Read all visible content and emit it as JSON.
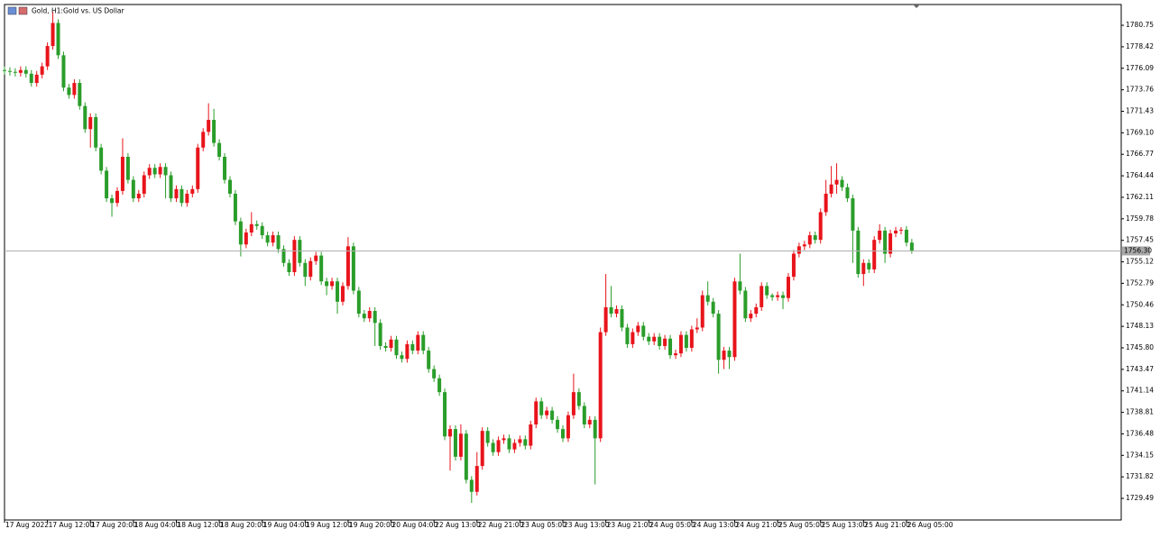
{
  "chart_data": {
    "type": "candlestick",
    "symbol": "Gold, H1:",
    "title": "Gold vs. US Dollar",
    "up_color": "#e8141b",
    "down_color": "#2a9d2a",
    "xlim": [
      0,
      208
    ],
    "ylim": [
      1727.15,
      1783.0
    ],
    "xticks": [
      {
        "value": 0,
        "label": "17 Aug 2022"
      },
      {
        "value": 8,
        "label": "17 Aug 12:00"
      },
      {
        "value": 16,
        "label": "17 Aug 20:00"
      },
      {
        "value": 24,
        "label": "18 Aug 04:00"
      },
      {
        "value": 32,
        "label": "18 Aug 12:00"
      },
      {
        "value": 40,
        "label": "18 Aug 20:00"
      },
      {
        "value": 48,
        "label": "19 Aug 04:00"
      },
      {
        "value": 56,
        "label": "19 Aug 12:00"
      },
      {
        "value": 64,
        "label": "19 Aug 20:00"
      },
      {
        "value": 72,
        "label": "20 Aug 04:00"
      },
      {
        "value": 80,
        "label": "22 Aug 13:00"
      },
      {
        "value": 88,
        "label": "22 Aug 21:00"
      },
      {
        "value": 96,
        "label": "23 Aug 05:00"
      },
      {
        "value": 104,
        "label": "23 Aug 13:00"
      },
      {
        "value": 112,
        "label": "23 Aug 21:00"
      },
      {
        "value": 120,
        "label": "24 Aug 05:00"
      },
      {
        "value": 128,
        "label": "24 Aug 13:00"
      },
      {
        "value": 136,
        "label": "24 Aug 21:00"
      },
      {
        "value": 144,
        "label": "25 Aug 05:00"
      },
      {
        "value": 152,
        "label": "25 Aug 13:00"
      },
      {
        "value": 160,
        "label": "25 Aug 21:00"
      },
      {
        "value": 168,
        "label": "26 Aug 05:00"
      }
    ],
    "yticks": [
      1780.75,
      1778.42,
      1776.09,
      1773.76,
      1771.43,
      {
        "value": 1769.1,
        "label": "1769.10"
      },
      1766.77,
      1764.44,
      1762.11,
      1759.78,
      1757.45,
      1755.12,
      1752.79,
      1750.46,
      1748.13,
      {
        "value": 1745.8,
        "label": "1745.80"
      },
      1743.47,
      1741.14,
      1738.81,
      1736.48,
      1734.15,
      1731.82,
      1729.49
    ],
    "last_price": {
      "value": 1756.3,
      "label": "1756.30"
    },
    "open": [
      1775.9,
      1775.8,
      1775.7,
      1775.6,
      1775.9,
      1775.5,
      1774.5,
      1775.4,
      1776.3,
      1778.5,
      1781.0,
      1777.5,
      1774.0,
      1773.2,
      1774.5,
      1772.0,
      1769.5,
      1770.8,
      1767.5,
      1765.0,
      1762.0,
      1761.5,
      1762.8,
      1766.5,
      1764.0,
      1762.0,
      1762.5,
      1764.5,
      1765.3,
      1764.6,
      1765.4,
      1764.5,
      1762.0,
      1763.0,
      1761.5,
      1762.5,
      1763.0,
      1767.5,
      1769.2,
      1770.5,
      1768.0,
      1766.5,
      1764.0,
      1762.5,
      1759.5,
      1757.0,
      1758.3,
      1759.2,
      1759.0,
      1758.0,
      1757.2,
      1758.0,
      1756.5,
      1755.0,
      1754.0,
      1757.5,
      1755.0,
      1753.5,
      1755.2,
      1755.8,
      1753.0,
      1752.5,
      1753.0,
      1750.8,
      1752.5,
      1756.8,
      1752.0,
      1749.5,
      1749.0,
      1749.8,
      1748.5,
      1746.0,
      1745.8,
      1746.7,
      1745.0,
      1744.6,
      1746.2,
      1745.5,
      1747.2,
      1745.5,
      1743.5,
      1742.5,
      1741.0,
      1736.2,
      1737.0,
      1734.0,
      1736.5,
      1731.5,
      1730.2,
      1733.0,
      1736.8,
      1735.5,
      1734.5,
      1735.8,
      1736.0,
      1734.8,
      1735.5,
      1735.9,
      1735.2,
      1737.5,
      1740.0,
      1738.5,
      1739.0,
      1738.0,
      1737.0,
      1736.0,
      1738.5,
      1741.0,
      1739.5,
      1737.5,
      1738.0,
      1736.0,
      1747.5,
      1750.2,
      1749.5,
      1750.0,
      1748.0,
      1746.2,
      1747.5,
      1748.2,
      1747.0,
      1746.5,
      1747.0,
      1746.0,
      1746.8,
      1745.0,
      1745.2,
      1747.2,
      1745.8,
      1747.8,
      1748.0,
      1751.5,
      1750.8,
      1749.5,
      1744.5,
      1745.5,
      1744.8,
      1753.0,
      1752.0,
      1749.0,
      1749.5,
      1750.2,
      1752.5,
      1751.5,
      1751.3,
      1751.5,
      1751.2,
      1753.5,
      1756.0,
      1756.8,
      1757.0,
      1758.0,
      1757.5,
      1760.5,
      1762.5,
      1763.5,
      1764.0,
      1763.2,
      1762.0,
      1758.5,
      1753.8,
      1755.0,
      1754.3,
      1757.5,
      1758.5,
      1756.0,
      1758.2,
      1758.5,
      1758.6,
      1757.2
    ],
    "high": [
      1776.3,
      1776.2,
      1776.1,
      1776.3,
      1776.3,
      1775.9,
      1775.8,
      1776.7,
      1778.9,
      1782.2,
      1781.4,
      1777.9,
      1774.4,
      1774.9,
      1774.9,
      1772.4,
      1771.2,
      1771.2,
      1767.9,
      1765.4,
      1762.4,
      1763.2,
      1768.5,
      1766.9,
      1764.4,
      1762.9,
      1764.9,
      1765.7,
      1765.7,
      1765.8,
      1765.8,
      1764.9,
      1763.4,
      1763.4,
      1762.9,
      1763.4,
      1767.9,
      1769.6,
      1772.3,
      1771.7,
      1768.4,
      1766.9,
      1764.4,
      1762.9,
      1759.9,
      1758.7,
      1760.5,
      1759.6,
      1759.4,
      1758.4,
      1758.4,
      1758.4,
      1756.9,
      1755.4,
      1757.9,
      1757.9,
      1755.4,
      1755.6,
      1756.2,
      1756.2,
      1753.4,
      1753.4,
      1753.4,
      1752.9,
      1757.8,
      1757.2,
      1752.4,
      1749.9,
      1750.2,
      1750.2,
      1748.9,
      1746.4,
      1747.1,
      1747.1,
      1745.4,
      1746.6,
      1746.6,
      1747.6,
      1747.6,
      1745.9,
      1743.9,
      1742.9,
      1741.4,
      1737.4,
      1737.4,
      1737.5,
      1736.9,
      1731.9,
      1734.5,
      1737.2,
      1737.2,
      1735.9,
      1736.2,
      1736.4,
      1736.4,
      1735.9,
      1736.3,
      1736.3,
      1737.9,
      1740.4,
      1740.4,
      1739.4,
      1739.4,
      1738.4,
      1737.4,
      1738.9,
      1743.0,
      1741.4,
      1739.9,
      1738.4,
      1738.4,
      1748.0,
      1753.8,
      1752.5,
      1750.4,
      1750.4,
      1748.4,
      1747.9,
      1748.6,
      1748.6,
      1747.4,
      1747.4,
      1747.4,
      1747.2,
      1747.2,
      1745.6,
      1747.6,
      1747.6,
      1748.2,
      1749.0,
      1752.0,
      1753.0,
      1751.2,
      1749.9,
      1745.9,
      1745.9,
      1753.4,
      1756.0,
      1752.4,
      1749.9,
      1750.6,
      1752.9,
      1752.9,
      1751.7,
      1751.9,
      1751.9,
      1753.9,
      1756.4,
      1757.2,
      1757.4,
      1758.4,
      1758.4,
      1760.9,
      1764.0,
      1765.5,
      1765.8,
      1764.4,
      1763.6,
      1762.4,
      1758.9,
      1755.4,
      1755.4,
      1757.9,
      1759.2,
      1758.9,
      1758.6,
      1758.9,
      1758.9,
      1759.0,
      1757.6
    ],
    "low": [
      1775.4,
      1775.3,
      1775.2,
      1775.2,
      1775.1,
      1774.1,
      1774.1,
      1775.0,
      1775.9,
      1778.1,
      1777.1,
      1773.6,
      1772.8,
      1772.8,
      1771.6,
      1769.1,
      1767.5,
      1767.1,
      1764.6,
      1761.6,
      1760.0,
      1761.1,
      1762.4,
      1763.6,
      1761.6,
      1761.6,
      1762.1,
      1764.1,
      1764.2,
      1764.2,
      1762.0,
      1761.6,
      1761.6,
      1761.1,
      1761.1,
      1762.1,
      1762.6,
      1767.1,
      1768.8,
      1767.6,
      1766.1,
      1763.6,
      1762.1,
      1759.1,
      1755.7,
      1756.6,
      1757.9,
      1758.6,
      1757.6,
      1756.8,
      1756.8,
      1756.1,
      1754.6,
      1753.6,
      1753.6,
      1754.6,
      1752.5,
      1753.1,
      1754.8,
      1752.6,
      1751.5,
      1752.1,
      1749.5,
      1750.4,
      1752.1,
      1751.6,
      1749.1,
      1748.6,
      1748.6,
      1746.0,
      1745.6,
      1745.4,
      1745.4,
      1744.6,
      1744.2,
      1744.2,
      1745.1,
      1745.1,
      1745.1,
      1743.1,
      1742.1,
      1740.6,
      1735.8,
      1732.5,
      1733.6,
      1733.6,
      1731.1,
      1729.0,
      1729.8,
      1732.6,
      1735.1,
      1734.1,
      1734.1,
      1735.4,
      1734.4,
      1734.4,
      1735.1,
      1734.8,
      1734.8,
      1737.1,
      1738.1,
      1738.1,
      1737.6,
      1736.6,
      1735.6,
      1735.6,
      1738.1,
      1739.1,
      1737.1,
      1737.1,
      1731.0,
      1735.6,
      1747.1,
      1749.1,
      1749.1,
      1747.6,
      1745.8,
      1745.8,
      1747.1,
      1746.6,
      1746.1,
      1746.1,
      1745.6,
      1745.6,
      1744.6,
      1744.6,
      1744.8,
      1745.4,
      1745.4,
      1747.4,
      1747.6,
      1750.4,
      1749.1,
      1743.0,
      1743.5,
      1743.5,
      1744.4,
      1751.6,
      1748.6,
      1748.6,
      1749.1,
      1749.8,
      1751.1,
      1750.9,
      1750.9,
      1750.0,
      1750.8,
      1753.1,
      1755.6,
      1756.4,
      1756.6,
      1757.1,
      1757.1,
      1760.1,
      1762.1,
      1762.5,
      1762.8,
      1761.6,
      1755.0,
      1753.4,
      1752.5,
      1753.9,
      1753.9,
      1757.1,
      1755.0,
      1755.6,
      1757.8,
      1758.1,
      1756.8,
      1756.0
    ],
    "close": [
      1775.8,
      1775.7,
      1775.6,
      1775.9,
      1775.5,
      1774.5,
      1775.4,
      1776.3,
      1778.5,
      1781.0,
      1777.5,
      1774.0,
      1773.2,
      1774.5,
      1772.0,
      1769.5,
      1770.8,
      1767.5,
      1765.0,
      1762.0,
      1761.5,
      1762.8,
      1766.5,
      1764.0,
      1762.0,
      1762.5,
      1764.5,
      1765.3,
      1764.6,
      1765.4,
      1764.5,
      1762.0,
      1763.0,
      1761.5,
      1762.5,
      1763.0,
      1767.5,
      1769.2,
      1770.5,
      1768.0,
      1766.5,
      1764.0,
      1762.5,
      1759.5,
      1757.0,
      1758.3,
      1759.2,
      1759.0,
      1758.0,
      1757.2,
      1758.0,
      1756.5,
      1755.0,
      1754.0,
      1757.5,
      1755.0,
      1753.5,
      1755.2,
      1755.8,
      1753.0,
      1752.5,
      1753.0,
      1750.8,
      1752.5,
      1756.8,
      1752.0,
      1749.5,
      1749.0,
      1749.8,
      1748.5,
      1746.0,
      1745.8,
      1746.7,
      1745.0,
      1744.6,
      1746.2,
      1745.5,
      1747.2,
      1745.5,
      1743.5,
      1742.5,
      1741.0,
      1736.2,
      1737.0,
      1734.0,
      1736.5,
      1731.5,
      1730.2,
      1733.0,
      1736.8,
      1735.5,
      1734.5,
      1735.8,
      1736.0,
      1734.8,
      1735.5,
      1735.9,
      1735.2,
      1737.5,
      1740.0,
      1738.5,
      1739.0,
      1738.0,
      1737.0,
      1736.0,
      1738.5,
      1741.0,
      1739.5,
      1737.5,
      1738.0,
      1736.0,
      1747.5,
      1750.2,
      1749.5,
      1750.0,
      1748.0,
      1746.2,
      1747.5,
      1748.2,
      1747.0,
      1746.5,
      1747.0,
      1746.0,
      1746.8,
      1745.0,
      1745.2,
      1747.2,
      1745.8,
      1747.8,
      1748.0,
      1751.5,
      1750.8,
      1749.5,
      1744.5,
      1745.5,
      1744.8,
      1753.0,
      1752.0,
      1749.0,
      1749.5,
      1750.2,
      1752.5,
      1751.5,
      1751.3,
      1751.5,
      1751.2,
      1753.5,
      1756.0,
      1756.8,
      1757.0,
      1758.0,
      1757.5,
      1760.5,
      1762.5,
      1763.5,
      1764.0,
      1763.2,
      1762.0,
      1758.5,
      1753.8,
      1755.0,
      1754.3,
      1757.5,
      1758.5,
      1756.0,
      1758.2,
      1758.5,
      1758.6,
      1757.2,
      1756.3
    ]
  }
}
